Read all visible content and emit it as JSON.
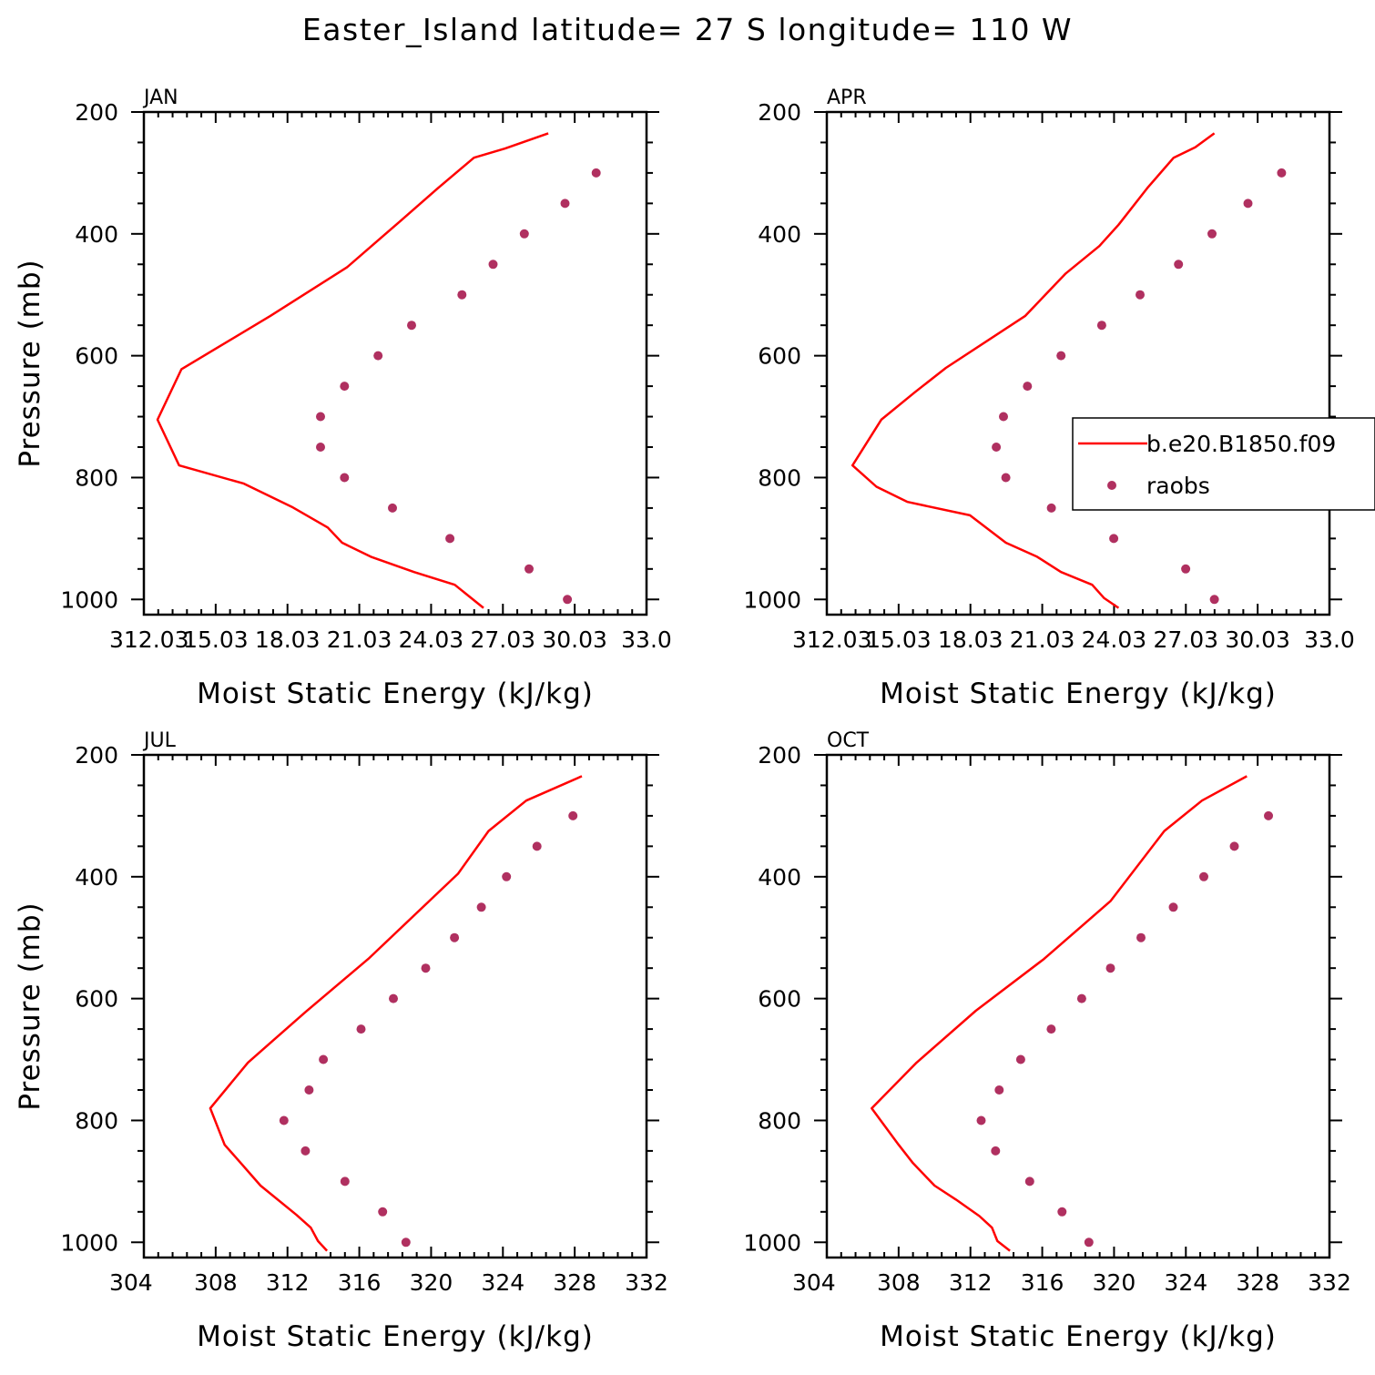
{
  "page_title": "Easter_Island  latitude= 27 S longitude= 110 W",
  "colors": {
    "model_line": "#ff0000",
    "raobs_marker": "#b03060",
    "axes": "#000000",
    "background": "#ffffff"
  },
  "legend": {
    "model_label": "b.e20.B1850.f09",
    "obs_label": "raobs",
    "panel": "APR"
  },
  "chart_data": [
    {
      "type": "line",
      "panel": "JAN",
      "xlabel": "Moist Static Energy (kJ/kg)",
      "ylabel": "Pressure (mb)",
      "xlim": [
        312.03,
        333.0
      ],
      "ylim": [
        1025,
        200
      ],
      "xticks": [
        "312.03",
        "15.03",
        "18.03",
        "21.03",
        "24.03",
        "27.03",
        "30.03",
        "33.0"
      ],
      "yticks": [
        "200",
        "400",
        "600",
        "800",
        "1000"
      ],
      "series": [
        {
          "name": "b.e20.B1850.f09",
          "kind": "line",
          "x": [
            326.2,
            325.0,
            323.3,
            321.5,
            320.3,
            319.7,
            318.2,
            316.2,
            313.5,
            312.6,
            313.6,
            317.3,
            320.5,
            322.7,
            324.3,
            325.8,
            327.1,
            328.9
          ],
          "y": [
            1014,
            976,
            955,
            930,
            907,
            882,
            848,
            810,
            780,
            705,
            622,
            535,
            455,
            380,
            325,
            275,
            260,
            235
          ]
        },
        {
          "name": "raobs",
          "kind": "scatter",
          "x": [
            329.7,
            328.1,
            324.8,
            322.4,
            320.4,
            319.4,
            319.4,
            320.4,
            321.8,
            323.2,
            325.3,
            326.6,
            327.9,
            329.6,
            330.9
          ],
          "y": [
            1000,
            950,
            900,
            850,
            800,
            750,
            700,
            650,
            600,
            550,
            500,
            450,
            400,
            350,
            300
          ]
        }
      ]
    },
    {
      "type": "line",
      "panel": "APR",
      "xlabel": "Moist Static Energy (kJ/kg)",
      "ylabel": "",
      "xlim": [
        312.03,
        333.0
      ],
      "ylim": [
        1025,
        200
      ],
      "xticks": [
        "312.03",
        "15.03",
        "18.03",
        "21.03",
        "24.03",
        "27.03",
        "30.03",
        "33.0"
      ],
      "yticks": [
        "200",
        "400",
        "600",
        "800",
        "1000"
      ],
      "series": [
        {
          "name": "b.e20.B1850.f09",
          "kind": "line",
          "x": [
            324.2,
            323.6,
            323.1,
            321.8,
            320.8,
            319.5,
            318.0,
            315.4,
            314.1,
            313.1,
            314.3,
            315.7,
            317.0,
            320.3,
            322.0,
            323.4,
            324.2,
            325.4,
            326.5,
            327.4,
            328.2
          ],
          "y": [
            1014,
            998,
            976,
            955,
            930,
            907,
            862,
            840,
            815,
            780,
            705,
            660,
            620,
            535,
            465,
            420,
            385,
            325,
            275,
            258,
            235
          ]
        },
        {
          "name": "raobs",
          "kind": "scatter",
          "x": [
            328.2,
            327.0,
            324.0,
            321.4,
            319.5,
            319.1,
            319.4,
            320.4,
            321.8,
            323.5,
            325.1,
            326.7,
            328.1,
            329.6,
            331.0
          ],
          "y": [
            1000,
            950,
            900,
            850,
            800,
            750,
            700,
            650,
            600,
            550,
            500,
            450,
            400,
            350,
            300
          ]
        }
      ]
    },
    {
      "type": "line",
      "panel": "JUL",
      "xlabel": "Moist Static Energy (kJ/kg)",
      "ylabel": "Pressure (mb)",
      "xlim": [
        304,
        332
      ],
      "ylim": [
        1025,
        200
      ],
      "xticks": [
        "304",
        "308",
        "312",
        "316",
        "320",
        "324",
        "328",
        "332"
      ],
      "yticks": [
        "200",
        "400",
        "600",
        "800",
        "1000"
      ],
      "series": [
        {
          "name": "b.e20.B1850.f09",
          "kind": "line",
          "x": [
            314.2,
            313.7,
            313.3,
            312.5,
            310.5,
            309.4,
            308.5,
            307.7,
            309.8,
            313.0,
            316.5,
            321.5,
            323.2,
            325.3,
            328.4
          ],
          "y": [
            1014,
            998,
            976,
            955,
            907,
            870,
            840,
            780,
            705,
            622,
            535,
            395,
            325,
            275,
            235
          ]
        },
        {
          "name": "raobs",
          "kind": "scatter",
          "x": [
            318.6,
            317.3,
            315.2,
            313.0,
            311.8,
            313.2,
            314.0,
            316.1,
            317.9,
            319.7,
            321.3,
            322.8,
            324.2,
            325.9,
            327.9
          ],
          "y": [
            1000,
            950,
            900,
            850,
            800,
            750,
            700,
            650,
            600,
            550,
            500,
            450,
            400,
            350,
            300
          ]
        }
      ]
    },
    {
      "type": "line",
      "panel": "OCT",
      "xlabel": "Moist Static Energy (kJ/kg)",
      "ylabel": "",
      "xlim": [
        304,
        332
      ],
      "ylim": [
        1025,
        200
      ],
      "xticks": [
        "304",
        "308",
        "312",
        "316",
        "320",
        "324",
        "328",
        "332"
      ],
      "yticks": [
        "200",
        "400",
        "600",
        "800",
        "1000"
      ],
      "series": [
        {
          "name": "b.e20.B1850.f09",
          "kind": "line",
          "x": [
            314.2,
            313.5,
            313.2,
            312.5,
            311.2,
            310.0,
            308.8,
            308.0,
            306.5,
            309.0,
            312.3,
            316.1,
            319.8,
            322.8,
            324.9,
            327.4
          ],
          "y": [
            1014,
            998,
            976,
            957,
            930,
            907,
            870,
            840,
            780,
            705,
            620,
            535,
            440,
            325,
            275,
            235
          ]
        },
        {
          "name": "raobs",
          "kind": "scatter",
          "x": [
            318.6,
            317.1,
            315.3,
            313.4,
            312.6,
            313.6,
            314.8,
            316.5,
            318.2,
            319.8,
            321.5,
            323.3,
            325.0,
            326.7,
            328.6
          ],
          "y": [
            1000,
            950,
            900,
            850,
            800,
            750,
            700,
            650,
            600,
            550,
            500,
            450,
            400,
            350,
            300
          ]
        }
      ]
    }
  ]
}
